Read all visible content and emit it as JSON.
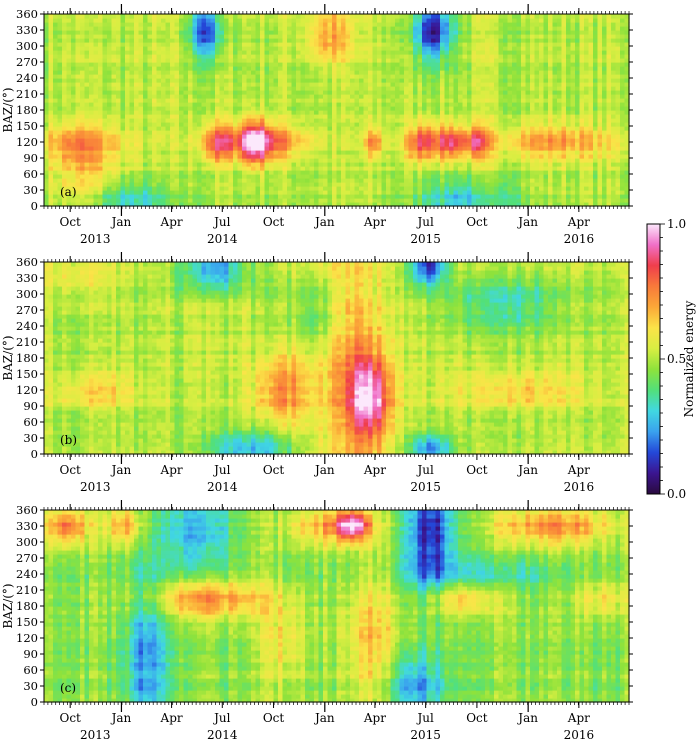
{
  "chart_data": {
    "type": "heatmap",
    "x_range": [
      "2013-08-15",
      "2016-06-30"
    ],
    "x_ticks": [
      {
        "label": "Oct",
        "date": "2013-10-01"
      },
      {
        "label": "Jan",
        "date": "2014-01-01"
      },
      {
        "label": "Apr",
        "date": "2014-04-01"
      },
      {
        "label": "Jul",
        "date": "2014-07-01"
      },
      {
        "label": "Oct",
        "date": "2014-10-01"
      },
      {
        "label": "Jan",
        "date": "2015-01-01"
      },
      {
        "label": "Apr",
        "date": "2015-04-01"
      },
      {
        "label": "Jul",
        "date": "2015-07-01"
      },
      {
        "label": "Oct",
        "date": "2015-10-01"
      },
      {
        "label": "Jan",
        "date": "2016-01-01"
      },
      {
        "label": "Apr",
        "date": "2016-04-01"
      }
    ],
    "years": [
      {
        "label": "2013",
        "date": "2013-11-15"
      },
      {
        "label": "2014",
        "date": "2014-07-01"
      },
      {
        "label": "2015",
        "date": "2015-07-01"
      },
      {
        "label": "2016",
        "date": "2016-04-01"
      }
    ],
    "ylabel": "BAZ/(°)",
    "ylim": [
      0,
      360
    ],
    "y_ticks": [
      0,
      30,
      60,
      90,
      120,
      150,
      180,
      210,
      240,
      270,
      300,
      330,
      360
    ],
    "colorbar": {
      "label": "Normalized energy",
      "range": [
        0.0,
        1.0
      ],
      "tick_labels": [
        "1.0",
        "0.5",
        "0.0"
      ],
      "tick_values": [
        1.0,
        0.5,
        0.0
      ],
      "colors": [
        "#2a0a3e",
        "#3b1590",
        "#2448d8",
        "#3aa2ee",
        "#41d8e2",
        "#52e07a",
        "#8ee23c",
        "#d8ee42",
        "#fbe448",
        "#fba838",
        "#f87a3a",
        "#f03e4c",
        "#f070c8",
        "#fce8fc"
      ]
    },
    "panels": [
      {
        "label": "(a)",
        "base": 0.5,
        "features": [
          {
            "date": "2014-06-25",
            "baz": 120,
            "width_days": 22,
            "width_deg": 25,
            "energy": 0.35
          },
          {
            "date": "2014-08-28",
            "baz": 120,
            "width_days": 22,
            "width_deg": 28,
            "energy": 0.48
          },
          {
            "date": "2015-07-01",
            "baz": 120,
            "width_days": 25,
            "width_deg": 25,
            "energy": 0.35
          },
          {
            "date": "2015-08-20",
            "baz": 120,
            "width_days": 15,
            "width_deg": 22,
            "energy": 0.3
          },
          {
            "date": "2015-10-01",
            "baz": 120,
            "width_days": 15,
            "width_deg": 22,
            "energy": 0.3
          },
          {
            "date": "2015-03-30",
            "baz": 120,
            "width_days": 12,
            "width_deg": 20,
            "energy": 0.22
          },
          {
            "date": "2013-10-15",
            "baz": 120,
            "width_days": 50,
            "width_deg": 25,
            "energy": 0.18
          },
          {
            "date": "2014-10-15",
            "baz": 120,
            "width_days": 40,
            "width_deg": 25,
            "energy": 0.2
          },
          {
            "date": "2016-02-15",
            "baz": 120,
            "width_days": 80,
            "width_deg": 25,
            "energy": 0.2
          },
          {
            "date": "2013-11-01",
            "baz": 60,
            "width_days": 45,
            "width_deg": 50,
            "energy": 0.15
          },
          {
            "date": "2014-06-01",
            "baz": 330,
            "width_days": 20,
            "width_deg": 40,
            "energy": -0.35
          },
          {
            "date": "2015-07-15",
            "baz": 330,
            "width_days": 25,
            "width_deg": 40,
            "energy": -0.4
          },
          {
            "date": "2015-01-10",
            "baz": 320,
            "width_days": 30,
            "width_deg": 35,
            "energy": 0.2
          },
          {
            "date": "2014-01-15",
            "baz": 15,
            "width_days": 60,
            "width_deg": 25,
            "energy": -0.2
          },
          {
            "date": "2015-09-10",
            "baz": 15,
            "width_days": 60,
            "width_deg": 25,
            "energy": -0.2
          }
        ]
      },
      {
        "label": "(b)",
        "base": 0.5,
        "features": [
          {
            "date": "2015-03-22",
            "baz": 105,
            "width_days": 28,
            "width_deg": 55,
            "energy": 0.4
          },
          {
            "date": "2014-10-15",
            "baz": 120,
            "width_days": 35,
            "width_deg": 50,
            "energy": 0.25
          },
          {
            "date": "2015-02-15",
            "baz": 170,
            "width_days": 50,
            "width_deg": 180,
            "energy": 0.18
          },
          {
            "date": "2013-11-15",
            "baz": 120,
            "width_days": 60,
            "width_deg": 25,
            "energy": 0.15
          },
          {
            "date": "2015-12-15",
            "baz": 120,
            "width_days": 90,
            "width_deg": 25,
            "energy": 0.15
          },
          {
            "date": "2014-06-15",
            "baz": 350,
            "width_days": 40,
            "width_deg": 30,
            "energy": -0.3
          },
          {
            "date": "2015-07-05",
            "baz": 355,
            "width_days": 25,
            "width_deg": 25,
            "energy": -0.4
          },
          {
            "date": "2014-08-15",
            "baz": 10,
            "width_days": 60,
            "width_deg": 25,
            "energy": -0.25
          },
          {
            "date": "2015-07-10",
            "baz": 10,
            "width_days": 30,
            "width_deg": 20,
            "energy": -0.3
          },
          {
            "date": "2014-12-20",
            "baz": 260,
            "width_days": 30,
            "width_deg": 50,
            "energy": -0.15
          },
          {
            "date": "2015-11-20",
            "baz": 280,
            "width_days": 80,
            "width_deg": 35,
            "energy": -0.15
          },
          {
            "date": "2013-10-15",
            "baz": 330,
            "width_days": 50,
            "width_deg": 25,
            "energy": 0.1
          }
        ]
      },
      {
        "label": "(c)",
        "base": 0.45,
        "features": [
          {
            "date": "2013-09-25",
            "baz": 330,
            "width_days": 30,
            "width_deg": 25,
            "energy": 0.32
          },
          {
            "date": "2014-01-05",
            "baz": 330,
            "width_days": 25,
            "width_deg": 25,
            "energy": 0.25
          },
          {
            "date": "2015-01-15",
            "baz": 330,
            "width_days": 60,
            "width_deg": 25,
            "energy": 0.25
          },
          {
            "date": "2015-02-20",
            "baz": 332,
            "width_days": 20,
            "width_deg": 20,
            "energy": 0.4
          },
          {
            "date": "2016-02-20",
            "baz": 330,
            "width_days": 80,
            "width_deg": 25,
            "energy": 0.28
          },
          {
            "date": "2014-06-01",
            "baz": 195,
            "width_days": 80,
            "width_deg": 25,
            "energy": 0.3
          },
          {
            "date": "2015-09-05",
            "baz": 195,
            "width_days": 50,
            "width_deg": 22,
            "energy": 0.22
          },
          {
            "date": "2016-05-15",
            "baz": 195,
            "width_days": 40,
            "width_deg": 25,
            "energy": 0.15
          },
          {
            "date": "2015-03-25",
            "baz": 115,
            "width_days": 40,
            "width_deg": 90,
            "energy": 0.2
          },
          {
            "date": "2014-10-20",
            "baz": 110,
            "width_days": 30,
            "width_deg": 60,
            "energy": 0.15
          },
          {
            "date": "2015-07-10",
            "baz": 320,
            "width_days": 30,
            "width_deg": 80,
            "energy": -0.35
          },
          {
            "date": "2014-05-20",
            "baz": 320,
            "width_days": 40,
            "width_deg": 60,
            "energy": -0.2
          },
          {
            "date": "2014-02-15",
            "baz": 80,
            "width_days": 25,
            "width_deg": 120,
            "energy": -0.22
          },
          {
            "date": "2015-06-15",
            "baz": 30,
            "width_days": 40,
            "width_deg": 40,
            "energy": -0.22
          },
          {
            "date": "2015-10-15",
            "baz": 240,
            "width_days": 90,
            "width_deg": 25,
            "energy": -0.12
          }
        ]
      }
    ]
  }
}
